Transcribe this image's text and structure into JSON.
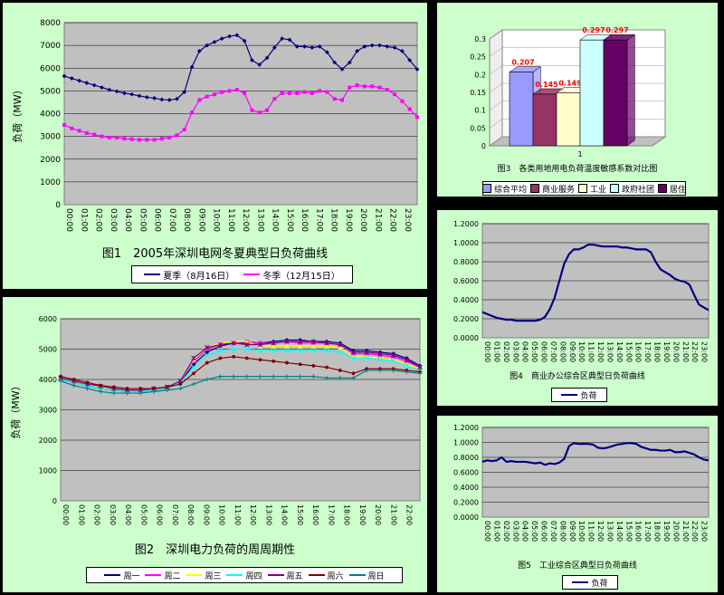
{
  "chart_data": [
    {
      "id": "fig1",
      "type": "line",
      "caption": "图1　2005年深圳电网冬夏典型日负荷曲线",
      "ylabel": "负荷（MW）",
      "ylim": [
        0,
        8000
      ],
      "yticks": [
        0,
        1000,
        2000,
        3000,
        4000,
        5000,
        6000,
        7000,
        8000
      ],
      "xticks": [
        "00:00",
        "01:00",
        "02:00",
        "03:00",
        "04:00",
        "05:00",
        "06:00",
        "07:00",
        "08:00",
        "09:00",
        "10:00",
        "11:00",
        "12:00",
        "13:00",
        "14:00",
        "15:00",
        "16:00",
        "17:00",
        "18:00",
        "19:00",
        "20:00",
        "21:00",
        "22:00",
        "23:00"
      ],
      "x": [
        0,
        0.5,
        1,
        1.5,
        2,
        2.5,
        3,
        3.5,
        4,
        4.5,
        5,
        5.5,
        6,
        6.5,
        7,
        7.5,
        8,
        8.5,
        9,
        9.5,
        10,
        10.5,
        11,
        11.5,
        12,
        12.5,
        13,
        13.5,
        14,
        14.5,
        15,
        15.5,
        16,
        16.5,
        17,
        17.5,
        18,
        18.5,
        19,
        19.5,
        20,
        20.5,
        21,
        21.5,
        22,
        22.5,
        23,
        23.5
      ],
      "series": [
        {
          "name": "夏季（8月16日）",
          "color": "#000080",
          "marker": "diamond",
          "values": [
            5650,
            5550,
            5450,
            5350,
            5250,
            5150,
            5050,
            4980,
            4900,
            4850,
            4780,
            4720,
            4680,
            4620,
            4600,
            4650,
            4950,
            6050,
            6750,
            7000,
            7150,
            7300,
            7400,
            7450,
            7200,
            6350,
            6150,
            6450,
            6900,
            7300,
            7250,
            6950,
            6950,
            6900,
            6950,
            6700,
            6250,
            5950,
            6250,
            6750,
            6950,
            7000,
            7000,
            6950,
            6900,
            6750,
            6350,
            5950
          ]
        },
        {
          "name": "冬季（12月15日）",
          "color": "#ff00ff",
          "marker": "square",
          "values": [
            3500,
            3350,
            3250,
            3150,
            3080,
            3000,
            2950,
            2950,
            2900,
            2880,
            2850,
            2850,
            2850,
            2900,
            2950,
            3050,
            3300,
            4050,
            4600,
            4750,
            4850,
            4950,
            5000,
            5050,
            4900,
            4150,
            4050,
            4150,
            4650,
            4900,
            4900,
            4900,
            4950,
            4900,
            5000,
            4950,
            4650,
            4600,
            5150,
            5250,
            5200,
            5200,
            5150,
            5050,
            4850,
            4550,
            4200,
            3850
          ]
        }
      ]
    },
    {
      "id": "fig2",
      "type": "line",
      "caption": "图2　深圳电力负荷的周周期性",
      "ylabel": "负荷（MW）",
      "ylim": [
        0,
        6000
      ],
      "yticks": [
        0,
        1000,
        2000,
        3000,
        4000,
        5000,
        6000
      ],
      "xticks": [
        "00:00",
        "01:00",
        "02:00",
        "03:00",
        "04:00",
        "05:00",
        "06:00",
        "07:00",
        "08:00",
        "09:00",
        "10:00",
        "11:00",
        "12:00",
        "13:00",
        "14:00",
        "15:00",
        "16:00",
        "17:00",
        "18:00",
        "19:00",
        "20:00",
        "21:00",
        "22:00"
      ],
      "series": [
        {
          "name": "周一",
          "color": "#000080",
          "marker": "diamond",
          "values": [
            4000,
            3900,
            3800,
            3700,
            3650,
            3600,
            3600,
            3650,
            3700,
            3900,
            4500,
            4900,
            5100,
            5200,
            5200,
            5200,
            5250,
            5300,
            5300,
            5250,
            5250,
            5200,
            4950,
            4950,
            4900,
            4850,
            4700,
            4450
          ]
        },
        {
          "name": "周二",
          "color": "#ff00ff",
          "marker": "square",
          "values": [
            4050,
            3950,
            3850,
            3780,
            3700,
            3650,
            3650,
            3700,
            3750,
            3950,
            4600,
            5000,
            5150,
            5200,
            5250,
            5200,
            5200,
            5250,
            5200,
            5200,
            5200,
            5150,
            4850,
            4850,
            4800,
            4750,
            4600,
            4400
          ]
        },
        {
          "name": "周三",
          "color": "#ffff00",
          "marker": "triangle",
          "values": [
            4050,
            3950,
            3850,
            3750,
            3700,
            3650,
            3650,
            3700,
            3750,
            3950,
            4650,
            5050,
            5200,
            5250,
            5250,
            5100,
            5100,
            5100,
            5100,
            5100,
            5100,
            5050,
            4750,
            4750,
            4700,
            4650,
            4500,
            4350
          ]
        },
        {
          "name": "周四",
          "color": "#00ffff",
          "marker": "x",
          "values": [
            4000,
            3900,
            3800,
            3700,
            3650,
            3600,
            3600,
            3650,
            3700,
            3900,
            4400,
            4800,
            4950,
            5000,
            5000,
            4950,
            4950,
            4950,
            4950,
            4950,
            4950,
            4900,
            4700,
            4700,
            4650,
            4600,
            4450,
            4300
          ]
        },
        {
          "name": "周五",
          "color": "#800080",
          "marker": "star",
          "values": [
            4050,
            3950,
            3850,
            3780,
            3700,
            3650,
            3650,
            3700,
            3750,
            3950,
            4700,
            5050,
            5150,
            5200,
            5150,
            5150,
            5200,
            5250,
            5250,
            5250,
            5200,
            5150,
            4900,
            4900,
            4850,
            4800,
            4650,
            4400
          ]
        },
        {
          "name": "周六",
          "color": "#800000",
          "marker": "circle",
          "values": [
            4100,
            4000,
            3900,
            3800,
            3750,
            3700,
            3700,
            3700,
            3750,
            3850,
            4200,
            4550,
            4700,
            4750,
            4700,
            4650,
            4600,
            4550,
            4500,
            4450,
            4400,
            4300,
            4200,
            4350,
            4350,
            4350,
            4300,
            4250
          ]
        },
        {
          "name": "周日",
          "color": "#008080",
          "marker": "plus",
          "values": [
            3950,
            3800,
            3700,
            3600,
            3550,
            3550,
            3550,
            3600,
            3650,
            3700,
            3850,
            4000,
            4100,
            4100,
            4100,
            4100,
            4100,
            4100,
            4100,
            4100,
            4050,
            4050,
            4050,
            4300,
            4300,
            4300,
            4250,
            4200
          ]
        }
      ]
    },
    {
      "id": "fig3",
      "type": "bar",
      "caption": "图3　各类用地用电负荷温度敏感系数对比图",
      "categories": [
        "1"
      ],
      "ylim": [
        0,
        0.3
      ],
      "yticks": [
        "0",
        "0.05",
        "0.1",
        "0.15",
        "0.2",
        "0.25",
        "0.3"
      ],
      "series": [
        {
          "name": "综合平均",
          "color": "#9999ff",
          "value": 0.207,
          "label": "0.207"
        },
        {
          "name": "商业服务",
          "color": "#993366",
          "value": 0.145,
          "label": "0.145"
        },
        {
          "name": "工业",
          "color": "#ffffcc",
          "value": 0.149,
          "label": "0.149"
        },
        {
          "name": "政府社团",
          "color": "#ccffff",
          "value": 0.297,
          "label": "0.297"
        },
        {
          "name": "居住",
          "color": "#660066",
          "value": 0.297,
          "label": "0.297"
        }
      ]
    },
    {
      "id": "fig4",
      "type": "line",
      "caption": "图4　商业办公综合区典型日负荷曲线",
      "ylim": [
        0,
        1.2
      ],
      "yticks": [
        "0.0000",
        "0.2000",
        "0.4000",
        "0.6000",
        "0.8000",
        "1.0000",
        "1.2000"
      ],
      "xticks": [
        "00:00",
        "01:00",
        "02:00",
        "03:00",
        "04:00",
        "05:00",
        "06:00",
        "07:00",
        "08:00",
        "09:00",
        "10:00",
        "11:00",
        "12:00",
        "13:00",
        "14:00",
        "15:00",
        "16:00",
        "17:00",
        "18:00",
        "19:00",
        "20:00",
        "21:00",
        "22:00",
        "23:00"
      ],
      "series": [
        {
          "name": "负荷",
          "color": "#000080",
          "values": [
            0.27,
            0.25,
            0.23,
            0.21,
            0.2,
            0.19,
            0.19,
            0.18,
            0.18,
            0.18,
            0.18,
            0.18,
            0.19,
            0.22,
            0.3,
            0.42,
            0.6,
            0.78,
            0.88,
            0.93,
            0.93,
            0.95,
            0.98,
            0.98,
            0.97,
            0.96,
            0.96,
            0.96,
            0.96,
            0.95,
            0.95,
            0.94,
            0.93,
            0.93,
            0.93,
            0.9,
            0.8,
            0.72,
            0.69,
            0.66,
            0.62,
            0.6,
            0.59,
            0.56,
            0.45,
            0.35,
            0.32,
            0.29
          ]
        }
      ]
    },
    {
      "id": "fig5",
      "type": "line",
      "caption": "图5　工业综合区典型日负荷曲线",
      "ylim": [
        0,
        1.2
      ],
      "yticks": [
        "0.0000",
        "0.2000",
        "0.4000",
        "0.6000",
        "0.8000",
        "1.0000",
        "1.2000"
      ],
      "xticks": [
        "00:00",
        "01:00",
        "02:00",
        "03:00",
        "04:00",
        "05:00",
        "06:00",
        "07:00",
        "08:00",
        "09:00",
        "10:00",
        "11:00",
        "12:00",
        "13:00",
        "14:00",
        "15:00",
        "16:00",
        "17:00",
        "18:00",
        "19:00",
        "20:00",
        "21:00",
        "22:00",
        "23:00"
      ],
      "series": [
        {
          "name": "负荷",
          "color": "#000080",
          "values": [
            0.74,
            0.76,
            0.75,
            0.76,
            0.8,
            0.74,
            0.75,
            0.74,
            0.74,
            0.74,
            0.73,
            0.72,
            0.73,
            0.7,
            0.72,
            0.71,
            0.73,
            0.78,
            0.95,
            0.99,
            0.98,
            0.98,
            0.98,
            0.97,
            0.93,
            0.92,
            0.93,
            0.95,
            0.97,
            0.98,
            0.99,
            0.99,
            0.98,
            0.94,
            0.92,
            0.9,
            0.9,
            0.89,
            0.89,
            0.9,
            0.87,
            0.87,
            0.88,
            0.86,
            0.84,
            0.8,
            0.77,
            0.76
          ]
        }
      ]
    }
  ]
}
